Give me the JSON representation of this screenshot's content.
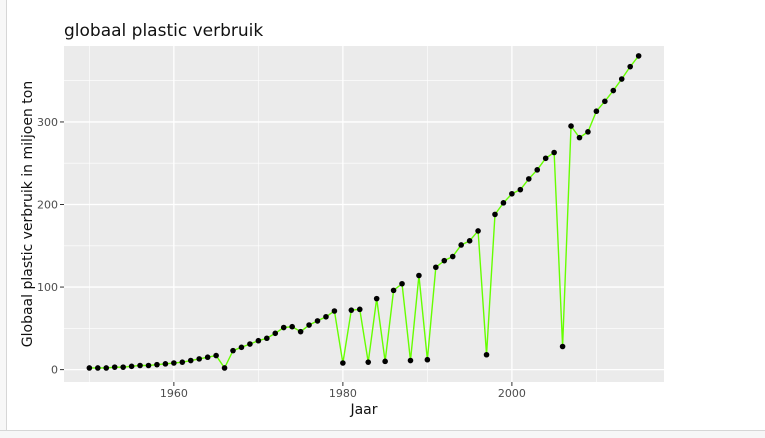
{
  "chart_data": {
    "type": "line",
    "title": "globaal plastic verbruik",
    "xlabel": "Jaar",
    "ylabel": "Globaal plastic verbruik in miljoen ton",
    "xlim": [
      1947,
      2018
    ],
    "ylim": [
      -15,
      392
    ],
    "x_ticks": [
      1960,
      1980,
      2000
    ],
    "y_ticks": [
      0,
      100,
      200,
      300
    ],
    "grid": true,
    "legend": "none",
    "line_color": "#66ff00",
    "point_color": "#000000",
    "panel_background": "#ebebeb",
    "series": [
      {
        "x": [
          1950,
          1951,
          1952,
          1953,
          1954,
          1955,
          1956,
          1957,
          1958,
          1959,
          1960,
          1961,
          1962,
          1963,
          1964,
          1965,
          1966,
          1967,
          1968,
          1969,
          1970,
          1971,
          1972,
          1973,
          1974,
          1975,
          1976,
          1977,
          1978,
          1979,
          1980,
          1981,
          1982,
          1983,
          1984,
          1985,
          1986,
          1987,
          1988,
          1989,
          1990,
          1991,
          1992,
          1993,
          1994,
          1995,
          1996,
          1997,
          1998,
          1999,
          2000,
          2001,
          2002,
          2003,
          2004,
          2005,
          2006,
          2007,
          2008,
          2009,
          2010,
          2011,
          2012,
          2013,
          2014,
          2015
        ],
        "values": [
          2,
          2,
          2,
          3,
          3,
          4,
          5,
          5,
          6,
          7,
          8,
          9,
          11,
          13,
          15,
          17,
          2,
          23,
          27,
          31,
          35,
          38,
          44,
          51,
          52,
          46,
          54,
          59,
          64,
          71,
          8,
          72,
          73,
          9,
          86,
          10,
          96,
          104,
          11,
          114,
          12,
          124,
          132,
          137,
          151,
          156,
          168,
          18,
          188,
          202,
          213,
          218,
          231,
          242,
          256,
          263,
          28,
          295,
          281,
          288,
          313,
          325,
          338,
          352,
          367,
          380
        ]
      }
    ]
  }
}
